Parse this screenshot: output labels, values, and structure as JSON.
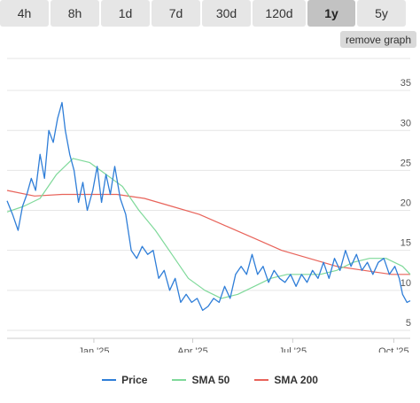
{
  "range_buttons": [
    {
      "label": "4h",
      "active": false
    },
    {
      "label": "8h",
      "active": false
    },
    {
      "label": "1d",
      "active": false
    },
    {
      "label": "7d",
      "active": false
    },
    {
      "label": "30d",
      "active": false
    },
    {
      "label": "120d",
      "active": false
    },
    {
      "label": "1y",
      "active": true
    },
    {
      "label": "5y",
      "active": false
    }
  ],
  "remove_graph_label": "remove graph",
  "chart_data": {
    "type": "line",
    "x_ticks": [
      "Jan '25",
      "Apr '25",
      "Jul '25",
      "Oct '25"
    ],
    "y_ticks": [
      5,
      10,
      15,
      20,
      25,
      30,
      35
    ],
    "ylim": [
      4,
      39
    ],
    "x_range": [
      "2024-10-14",
      "2025-10-16"
    ],
    "grid": true,
    "legend_position": "bottom",
    "series": [
      {
        "name": "Price",
        "color": "#2f7ed8",
        "points": [
          [
            "2024-10-14",
            21.2
          ],
          [
            "2024-10-19",
            19.5
          ],
          [
            "2024-10-24",
            17.5
          ],
          [
            "2024-10-28",
            20.5
          ],
          [
            "2024-11-01",
            22.0
          ],
          [
            "2024-11-05",
            24.0
          ],
          [
            "2024-11-09",
            22.5
          ],
          [
            "2024-11-13",
            27.0
          ],
          [
            "2024-11-17",
            24.0
          ],
          [
            "2024-11-21",
            30.0
          ],
          [
            "2024-11-25",
            28.5
          ],
          [
            "2024-11-29",
            31.5
          ],
          [
            "2024-12-03",
            33.5
          ],
          [
            "2024-12-06",
            30.0
          ],
          [
            "2024-12-10",
            27.0
          ],
          [
            "2024-12-14",
            25.0
          ],
          [
            "2024-12-18",
            21.0
          ],
          [
            "2024-12-22",
            23.5
          ],
          [
            "2024-12-26",
            20.0
          ],
          [
            "2024-12-31",
            22.5
          ],
          [
            "2025-01-04",
            25.5
          ],
          [
            "2025-01-08",
            21.0
          ],
          [
            "2025-01-12",
            24.5
          ],
          [
            "2025-01-16",
            22.0
          ],
          [
            "2025-01-20",
            25.5
          ],
          [
            "2025-01-25",
            21.5
          ],
          [
            "2025-01-30",
            19.5
          ],
          [
            "2025-02-04",
            15.0
          ],
          [
            "2025-02-09",
            14.0
          ],
          [
            "2025-02-14",
            15.5
          ],
          [
            "2025-02-19",
            14.5
          ],
          [
            "2025-02-24",
            15.0
          ],
          [
            "2025-03-01",
            11.5
          ],
          [
            "2025-03-06",
            12.5
          ],
          [
            "2025-03-11",
            10.0
          ],
          [
            "2025-03-16",
            11.5
          ],
          [
            "2025-03-21",
            8.5
          ],
          [
            "2025-03-26",
            9.5
          ],
          [
            "2025-03-31",
            8.5
          ],
          [
            "2025-04-05",
            9.0
          ],
          [
            "2025-04-10",
            7.5
          ],
          [
            "2025-04-15",
            8.0
          ],
          [
            "2025-04-20",
            9.0
          ],
          [
            "2025-04-25",
            8.5
          ],
          [
            "2025-04-30",
            10.5
          ],
          [
            "2025-05-05",
            9.0
          ],
          [
            "2025-05-10",
            12.0
          ],
          [
            "2025-05-15",
            13.0
          ],
          [
            "2025-05-20",
            12.0
          ],
          [
            "2025-05-25",
            14.5
          ],
          [
            "2025-05-30",
            12.0
          ],
          [
            "2025-06-04",
            13.0
          ],
          [
            "2025-06-09",
            11.0
          ],
          [
            "2025-06-14",
            12.5
          ],
          [
            "2025-06-19",
            11.5
          ],
          [
            "2025-06-24",
            11.0
          ],
          [
            "2025-06-29",
            12.0
          ],
          [
            "2025-07-04",
            10.5
          ],
          [
            "2025-07-09",
            12.0
          ],
          [
            "2025-07-14",
            11.0
          ],
          [
            "2025-07-19",
            12.5
          ],
          [
            "2025-07-24",
            11.5
          ],
          [
            "2025-07-29",
            13.5
          ],
          [
            "2025-08-03",
            11.5
          ],
          [
            "2025-08-08",
            14.0
          ],
          [
            "2025-08-13",
            12.5
          ],
          [
            "2025-08-18",
            15.0
          ],
          [
            "2025-08-23",
            13.0
          ],
          [
            "2025-08-28",
            14.5
          ],
          [
            "2025-09-02",
            12.5
          ],
          [
            "2025-09-07",
            13.5
          ],
          [
            "2025-09-12",
            12.0
          ],
          [
            "2025-09-17",
            13.5
          ],
          [
            "2025-09-22",
            14.0
          ],
          [
            "2025-09-27",
            12.0
          ],
          [
            "2025-10-02",
            13.0
          ],
          [
            "2025-10-06",
            11.5
          ],
          [
            "2025-10-09",
            9.5
          ],
          [
            "2025-10-13",
            8.5
          ],
          [
            "2025-10-16",
            8.7
          ]
        ]
      },
      {
        "name": "SMA 50",
        "color": "#7fd99a",
        "points": [
          [
            "2024-10-14",
            19.8
          ],
          [
            "2024-10-29",
            20.5
          ],
          [
            "2024-11-13",
            21.5
          ],
          [
            "2024-11-28",
            24.5
          ],
          [
            "2024-12-13",
            26.5
          ],
          [
            "2024-12-28",
            26.0
          ],
          [
            "2025-01-12",
            24.5
          ],
          [
            "2025-01-27",
            23.0
          ],
          [
            "2025-02-11",
            20.0
          ],
          [
            "2025-02-26",
            17.5
          ],
          [
            "2025-03-13",
            14.5
          ],
          [
            "2025-03-28",
            11.5
          ],
          [
            "2025-04-12",
            10.0
          ],
          [
            "2025-04-27",
            9.0
          ],
          [
            "2025-05-12",
            9.5
          ],
          [
            "2025-05-27",
            10.5
          ],
          [
            "2025-06-11",
            11.5
          ],
          [
            "2025-06-26",
            12.0
          ],
          [
            "2025-07-11",
            12.0
          ],
          [
            "2025-07-26",
            12.0
          ],
          [
            "2025-08-10",
            12.5
          ],
          [
            "2025-08-25",
            13.5
          ],
          [
            "2025-09-09",
            14.0
          ],
          [
            "2025-09-24",
            14.0
          ],
          [
            "2025-10-09",
            13.0
          ],
          [
            "2025-10-16",
            12.0
          ]
        ]
      },
      {
        "name": "SMA 200",
        "color": "#e8635a",
        "points": [
          [
            "2024-10-14",
            22.5
          ],
          [
            "2024-11-08",
            21.8
          ],
          [
            "2024-12-03",
            22.0
          ],
          [
            "2024-12-28",
            22.0
          ],
          [
            "2025-01-22",
            22.0
          ],
          [
            "2025-02-16",
            21.5
          ],
          [
            "2025-03-13",
            20.5
          ],
          [
            "2025-04-07",
            19.5
          ],
          [
            "2025-05-02",
            18.0
          ],
          [
            "2025-05-27",
            16.5
          ],
          [
            "2025-06-21",
            15.0
          ],
          [
            "2025-07-16",
            14.0
          ],
          [
            "2025-08-10",
            13.0
          ],
          [
            "2025-09-04",
            12.5
          ],
          [
            "2025-09-29",
            12.0
          ],
          [
            "2025-10-16",
            12.0
          ]
        ]
      }
    ]
  }
}
